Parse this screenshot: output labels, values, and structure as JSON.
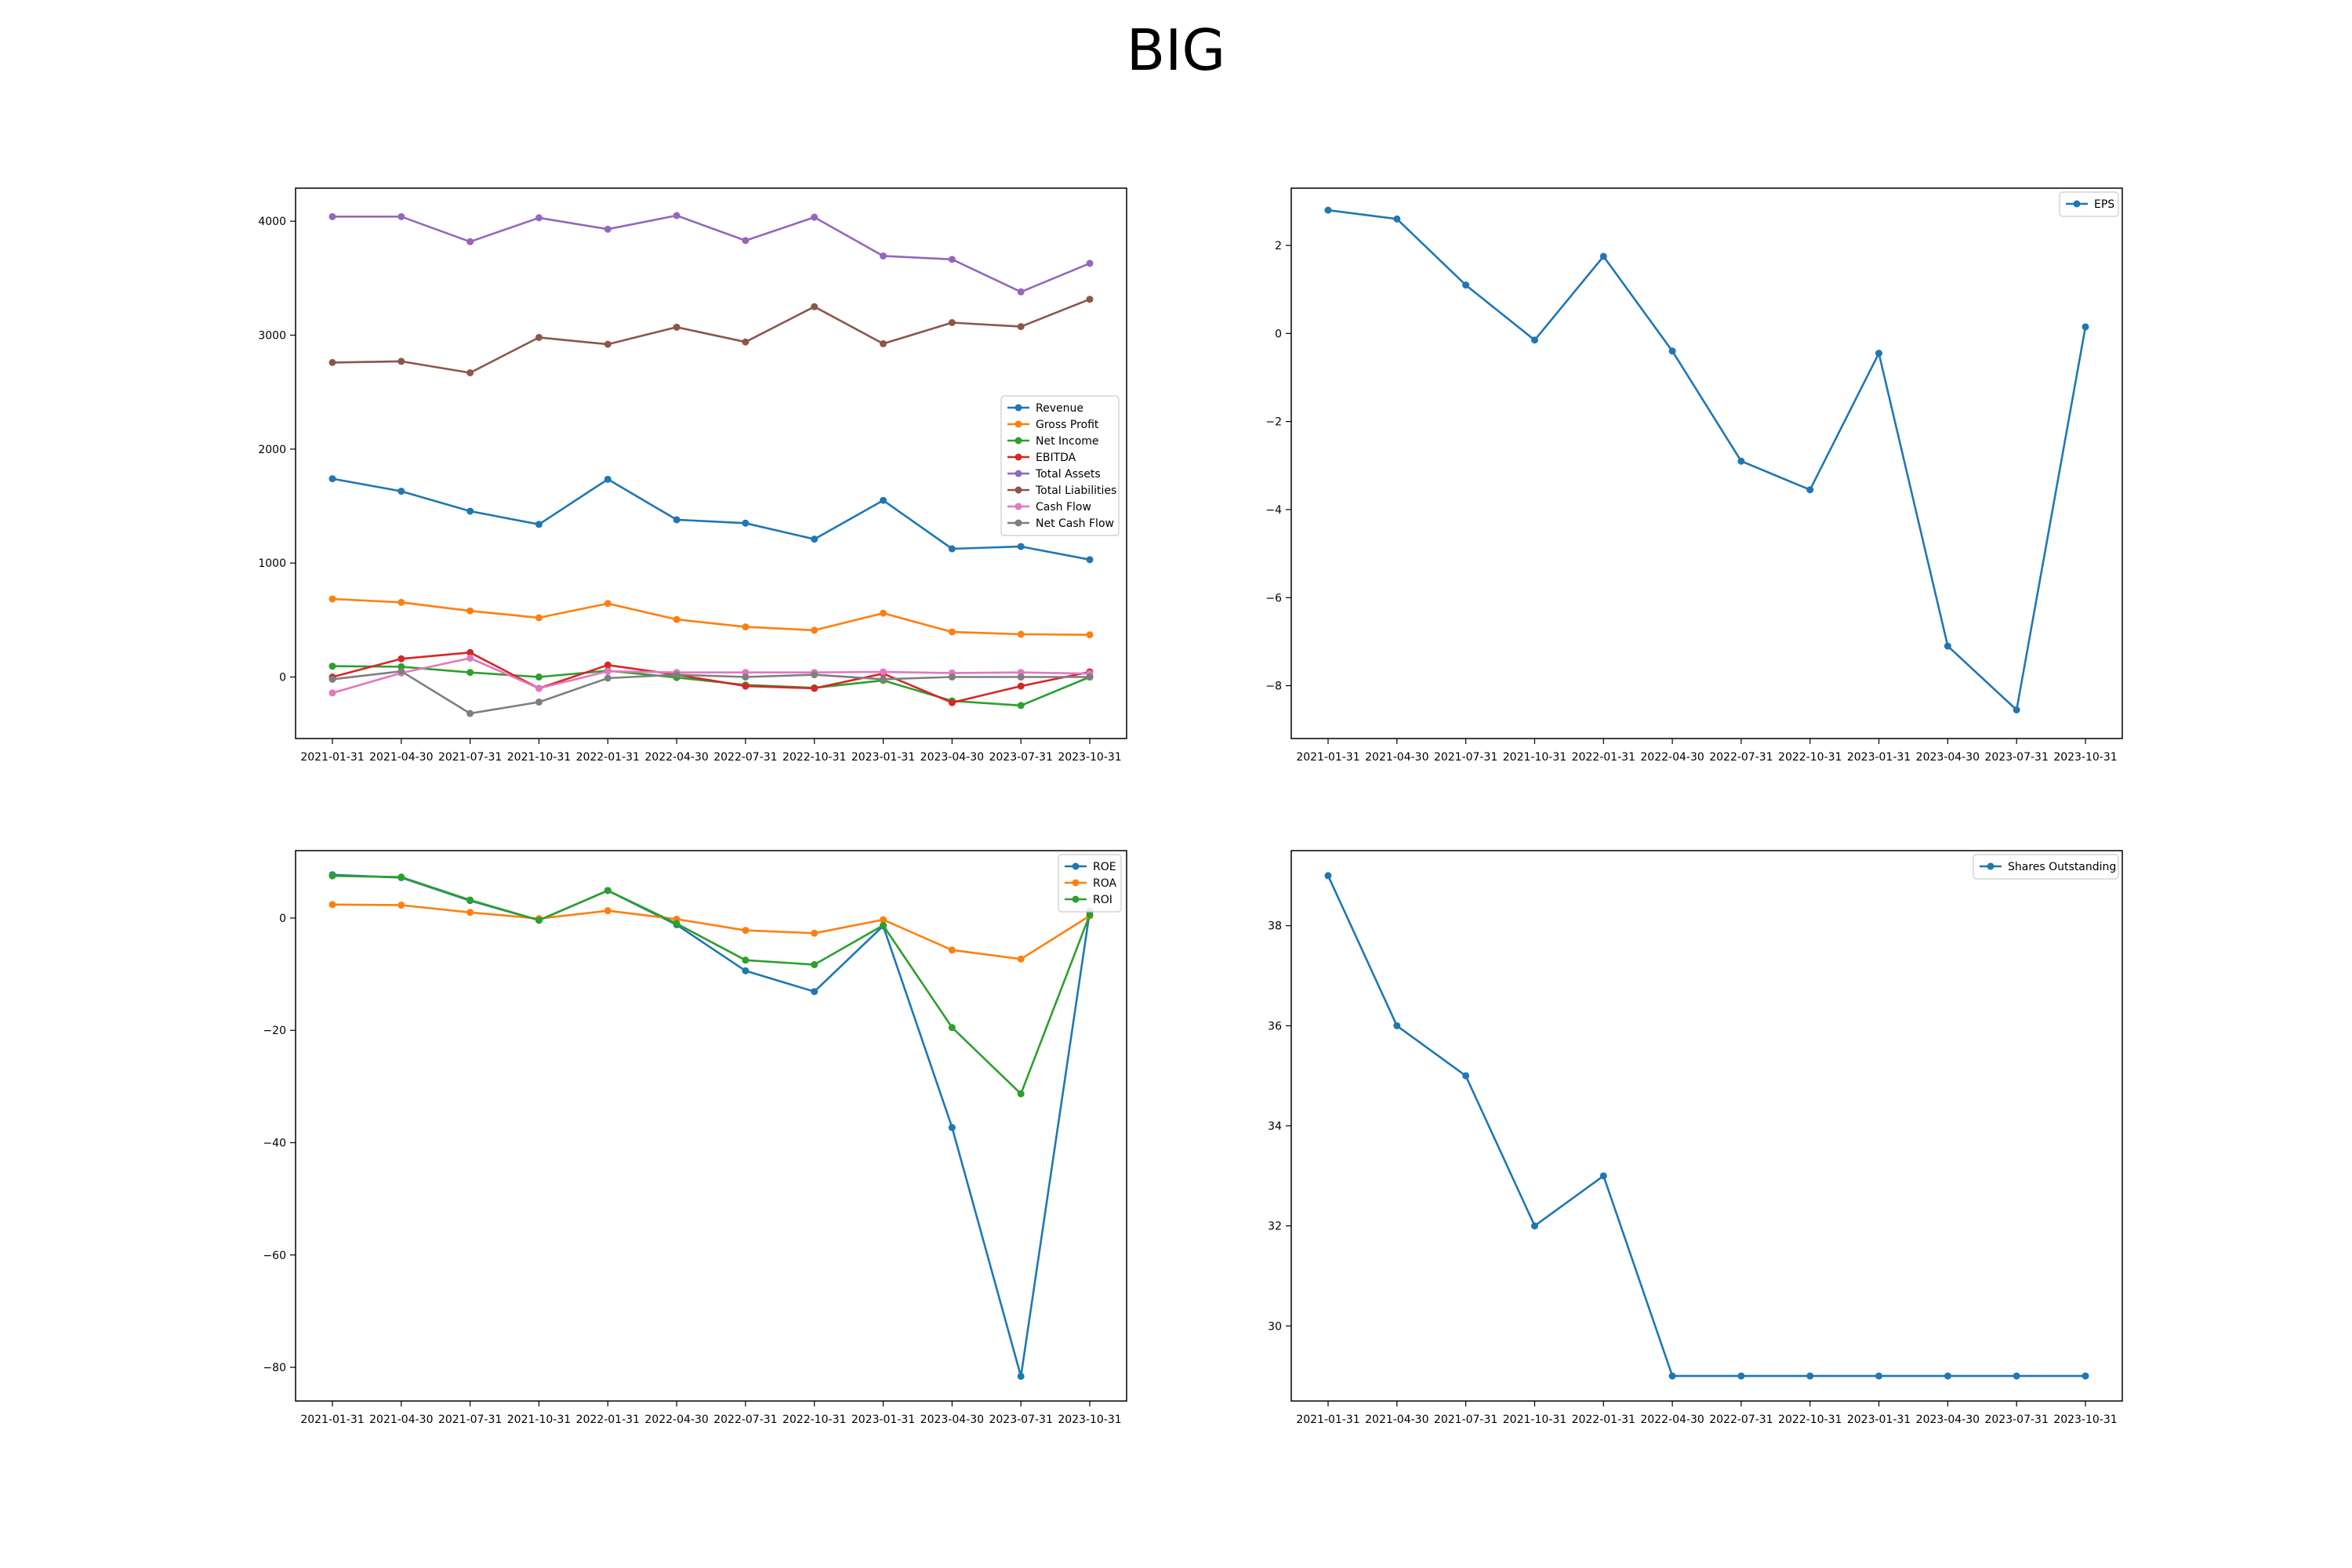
{
  "title": "BIG",
  "chart_data": [
    {
      "id": "financials",
      "type": "line",
      "categories": [
        "2021-01-31",
        "2021-04-30",
        "2021-07-31",
        "2021-10-31",
        "2022-01-31",
        "2022-04-30",
        "2022-07-31",
        "2022-10-31",
        "2023-01-31",
        "2023-04-30",
        "2023-07-31",
        "2023-10-31"
      ],
      "ylim": [
        -540,
        4290
      ],
      "yticks": [
        0,
        1000,
        2000,
        3000,
        4000
      ],
      "legend": "center-right",
      "grid": false,
      "series": [
        {
          "name": "Revenue",
          "color": "#1f77b4",
          "values": [
            1740,
            1630,
            1455,
            1340,
            1735,
            1380,
            1350,
            1210,
            1550,
            1125,
            1145,
            1030
          ]
        },
        {
          "name": "Gross Profit",
          "color": "#ff7f0e",
          "values": [
            685,
            655,
            580,
            520,
            645,
            505,
            440,
            410,
            560,
            395,
            375,
            370
          ]
        },
        {
          "name": "Net Income",
          "color": "#2ca02c",
          "values": [
            95,
            90,
            40,
            0,
            55,
            -5,
            -70,
            -95,
            -30,
            -210,
            -250,
            0
          ]
        },
        {
          "name": "EBITDA",
          "color": "#d62728",
          "values": [
            0,
            160,
            215,
            -100,
            105,
            20,
            -80,
            -100,
            30,
            -225,
            -80,
            45
          ]
        },
        {
          "name": "Total Assets",
          "color": "#9467bd",
          "values": [
            4040,
            4040,
            3820,
            4030,
            3930,
            4050,
            3830,
            4035,
            3695,
            3665,
            3380,
            3630
          ]
        },
        {
          "name": "Total Liabilities",
          "color": "#8c564b",
          "values": [
            2760,
            2770,
            2670,
            2980,
            2920,
            3070,
            2940,
            3250,
            2925,
            3110,
            3075,
            3315
          ]
        },
        {
          "name": "Cash Flow",
          "color": "#e377c2",
          "values": [
            -140,
            35,
            165,
            -100,
            50,
            40,
            40,
            40,
            45,
            35,
            40,
            30
          ]
        },
        {
          "name": "Net Cash Flow",
          "color": "#7f7f7f",
          "values": [
            -20,
            50,
            -320,
            -220,
            -10,
            20,
            0,
            20,
            -20,
            0,
            0,
            0
          ]
        }
      ]
    },
    {
      "id": "eps",
      "type": "line",
      "categories": [
        "2021-01-31",
        "2021-04-30",
        "2021-07-31",
        "2021-10-31",
        "2022-01-31",
        "2022-04-30",
        "2022-07-31",
        "2022-10-31",
        "2023-01-31",
        "2023-04-30",
        "2023-07-31",
        "2023-10-31"
      ],
      "ylim": [
        -9.2,
        3.3
      ],
      "yticks": [
        -8,
        -6,
        -4,
        -2,
        0,
        2
      ],
      "legend": "upper-right",
      "grid": false,
      "series": [
        {
          "name": "EPS",
          "color": "#1f77b4",
          "values": [
            2.8,
            2.6,
            1.1,
            -0.15,
            1.75,
            -0.4,
            -2.9,
            -3.55,
            -0.45,
            -7.1,
            -8.55,
            0.15
          ]
        }
      ]
    },
    {
      "id": "ratios",
      "type": "line",
      "categories": [
        "2021-01-31",
        "2021-04-30",
        "2021-07-31",
        "2021-10-31",
        "2022-01-31",
        "2022-04-30",
        "2022-07-31",
        "2022-10-31",
        "2023-01-31",
        "2023-04-30",
        "2023-07-31",
        "2023-10-31"
      ],
      "ylim": [
        -86,
        12
      ],
      "yticks": [
        -80,
        -60,
        -40,
        -20,
        0
      ],
      "legend": "upper-right",
      "grid": false,
      "series": [
        {
          "name": "ROE",
          "color": "#1f77b4",
          "values": [
            7.7,
            7.2,
            3.1,
            -0.4,
            4.9,
            -1.2,
            -9.4,
            -13.1,
            -1.4,
            -37.3,
            -81.6,
            1.2
          ]
        },
        {
          "name": "ROA",
          "color": "#ff7f0e",
          "values": [
            2.4,
            2.3,
            1.0,
            -0.1,
            1.3,
            -0.2,
            -2.2,
            -2.7,
            -0.3,
            -5.7,
            -7.3,
            0.4
          ]
        },
        {
          "name": "ROI",
          "color": "#2ca02c",
          "values": [
            7.5,
            7.3,
            3.2,
            -0.4,
            4.9,
            -1.0,
            -7.5,
            -8.3,
            -1.3,
            -19.5,
            -31.3,
            0.6
          ]
        }
      ]
    },
    {
      "id": "shares",
      "type": "line",
      "categories": [
        "2021-01-31",
        "2021-04-30",
        "2021-07-31",
        "2021-10-31",
        "2022-01-31",
        "2022-04-30",
        "2022-07-31",
        "2022-10-31",
        "2023-01-31",
        "2023-04-30",
        "2023-07-31",
        "2023-10-31"
      ],
      "ylim": [
        28.5,
        39.5
      ],
      "yticks": [
        30,
        32,
        34,
        36,
        38
      ],
      "legend": "upper-right",
      "grid": false,
      "series": [
        {
          "name": "Shares Outstanding",
          "color": "#1f77b4",
          "values": [
            39,
            36,
            35,
            32,
            33,
            29,
            29,
            29,
            29,
            29,
            29,
            29
          ]
        }
      ]
    }
  ]
}
